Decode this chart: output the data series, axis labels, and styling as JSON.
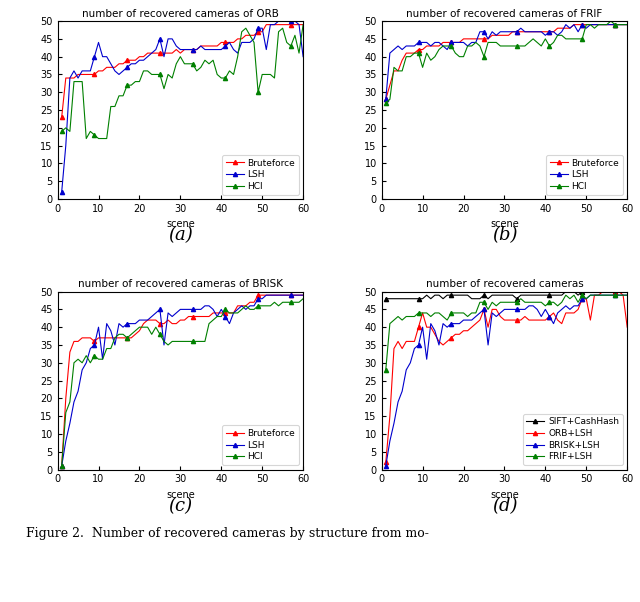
{
  "title_a": "number of recovered cameras of ORB",
  "title_b": "number of recovered cameras of FRIF",
  "title_c": "number of recovered cameras of BRISK",
  "title_d": "number of recovered cameras",
  "xlabel": "scene",
  "ylim": [
    0,
    50
  ],
  "xlim": [
    0,
    60
  ],
  "yticks": [
    0,
    5,
    10,
    15,
    20,
    25,
    30,
    35,
    40,
    45,
    50
  ],
  "xticks": [
    0,
    10,
    20,
    30,
    40,
    50,
    60
  ],
  "caption_a": "(a)",
  "caption_b": "(b)",
  "caption_c": "(c)",
  "caption_d": "(d)",
  "figure_caption": "Figure 2.  Number of recovered cameras by structure from mo-",
  "orb_bruteforce": [
    23,
    34,
    34,
    34,
    35,
    35,
    35,
    35,
    35,
    36,
    36,
    37,
    37,
    37,
    38,
    38,
    39,
    39,
    39,
    40,
    40,
    41,
    41,
    41,
    41,
    41,
    41,
    41,
    42,
    41,
    42,
    42,
    42,
    42,
    43,
    43,
    43,
    43,
    43,
    44,
    44,
    44,
    44,
    45,
    45,
    46,
    46,
    46,
    47,
    47,
    49,
    49,
    49,
    49,
    49,
    49,
    49,
    49,
    49,
    49
  ],
  "orb_lsh": [
    2,
    15,
    34,
    36,
    34,
    36,
    36,
    36,
    40,
    44,
    40,
    40,
    38,
    36,
    35,
    36,
    37,
    38,
    38,
    39,
    39,
    40,
    41,
    42,
    45,
    40,
    45,
    45,
    43,
    42,
    42,
    42,
    42,
    42,
    43,
    42,
    42,
    42,
    42,
    42,
    43,
    44,
    42,
    41,
    44,
    44,
    44,
    45,
    48,
    48,
    42,
    49,
    49,
    50,
    50,
    50,
    50,
    50,
    49,
    40
  ],
  "orb_hci": [
    19,
    20,
    19,
    33,
    33,
    33,
    17,
    19,
    18,
    17,
    17,
    17,
    26,
    26,
    29,
    29,
    32,
    32,
    33,
    33,
    36,
    36,
    35,
    35,
    35,
    31,
    35,
    34,
    38,
    40,
    38,
    38,
    38,
    36,
    37,
    39,
    38,
    39,
    35,
    34,
    34,
    36,
    35,
    40,
    47,
    48,
    46,
    44,
    30,
    35,
    35,
    35,
    34,
    47,
    48,
    44,
    43,
    46,
    41,
    49
  ],
  "frif_bruteforce": [
    28,
    32,
    36,
    36,
    39,
    41,
    41,
    41,
    42,
    42,
    43,
    43,
    43,
    43,
    44,
    44,
    44,
    44,
    44,
    45,
    45,
    45,
    45,
    45,
    45,
    45,
    46,
    46,
    46,
    46,
    46,
    47,
    47,
    47,
    47,
    47,
    47,
    47,
    47,
    47,
    47,
    47,
    48,
    48,
    48,
    48,
    49,
    49,
    49,
    49,
    49,
    49,
    49,
    49,
    49,
    49,
    49,
    49,
    49,
    49
  ],
  "frif_lsh": [
    28,
    41,
    42,
    43,
    42,
    43,
    43,
    43,
    44,
    44,
    44,
    43,
    44,
    44,
    43,
    42,
    44,
    44,
    44,
    44,
    43,
    44,
    44,
    47,
    47,
    45,
    47,
    46,
    47,
    47,
    47,
    47,
    47,
    48,
    47,
    47,
    47,
    47,
    47,
    46,
    47,
    47,
    46,
    47,
    49,
    48,
    49,
    47,
    49,
    48,
    49,
    49,
    49,
    49,
    49,
    49,
    49,
    49,
    49,
    49
  ],
  "frif_hci": [
    27,
    28,
    37,
    36,
    36,
    40,
    40,
    41,
    41,
    37,
    41,
    39,
    40,
    42,
    43,
    43,
    43,
    41,
    40,
    40,
    43,
    43,
    44,
    43,
    40,
    44,
    44,
    44,
    43,
    43,
    43,
    43,
    43,
    43,
    43,
    44,
    45,
    44,
    43,
    45,
    43,
    44,
    46,
    46,
    45,
    45,
    45,
    45,
    45,
    49,
    49,
    48,
    49,
    49,
    49,
    50,
    49,
    49,
    49,
    49
  ],
  "brisk_bruteforce": [
    1,
    20,
    33,
    36,
    36,
    37,
    37,
    37,
    36,
    37,
    37,
    37,
    37,
    37,
    37,
    37,
    37,
    37,
    38,
    39,
    41,
    42,
    42,
    42,
    41,
    41,
    42,
    41,
    41,
    42,
    42,
    43,
    43,
    43,
    43,
    43,
    43,
    44,
    44,
    44,
    44,
    44,
    44,
    46,
    46,
    46,
    47,
    47,
    49,
    49,
    49,
    49,
    49,
    49,
    49,
    49,
    49,
    49,
    49,
    49
  ],
  "brisk_lsh": [
    1,
    8,
    13,
    19,
    22,
    28,
    30,
    34,
    35,
    40,
    31,
    41,
    39,
    35,
    41,
    40,
    41,
    41,
    41,
    42,
    42,
    42,
    43,
    44,
    45,
    35,
    44,
    43,
    44,
    45,
    45,
    45,
    45,
    45,
    45,
    46,
    46,
    45,
    43,
    45,
    43,
    41,
    44,
    45,
    46,
    45,
    46,
    46,
    48,
    48,
    49,
    49,
    49,
    49,
    49,
    49,
    49,
    49,
    49,
    49
  ],
  "brisk_hci": [
    1,
    16,
    19,
    30,
    31,
    30,
    32,
    30,
    32,
    31,
    31,
    34,
    34,
    37,
    38,
    38,
    37,
    38,
    39,
    40,
    40,
    40,
    38,
    40,
    38,
    36,
    35,
    36,
    36,
    36,
    36,
    36,
    36,
    36,
    36,
    36,
    41,
    42,
    43,
    43,
    45,
    44,
    44,
    44,
    45,
    46,
    45,
    45,
    46,
    46,
    46,
    46,
    47,
    46,
    47,
    47,
    47,
    47,
    47,
    48
  ],
  "d_sift_cashhash": [
    48,
    48,
    48,
    48,
    48,
    48,
    48,
    48,
    48,
    48,
    49,
    48,
    49,
    49,
    48,
    49,
    49,
    49,
    49,
    49,
    49,
    48,
    48,
    48,
    49,
    48,
    49,
    49,
    49,
    49,
    49,
    49,
    48,
    49,
    49,
    49,
    49,
    49,
    49,
    49,
    49,
    49,
    49,
    49,
    50,
    50,
    50,
    49,
    50,
    50,
    50,
    50,
    50,
    50,
    50,
    50,
    50,
    50,
    50,
    50
  ],
  "d_orb_lsh": [
    2,
    15,
    34,
    36,
    34,
    36,
    36,
    36,
    40,
    44,
    40,
    40,
    38,
    36,
    35,
    36,
    37,
    38,
    38,
    39,
    39,
    40,
    41,
    42,
    45,
    40,
    45,
    45,
    43,
    42,
    42,
    42,
    42,
    42,
    43,
    42,
    42,
    42,
    42,
    42,
    43,
    44,
    42,
    41,
    44,
    44,
    44,
    45,
    48,
    48,
    42,
    49,
    49,
    50,
    50,
    50,
    50,
    50,
    49,
    40
  ],
  "d_brisk_lsh": [
    1,
    8,
    13,
    19,
    22,
    28,
    30,
    34,
    35,
    40,
    31,
    41,
    39,
    35,
    41,
    40,
    41,
    41,
    41,
    42,
    42,
    42,
    43,
    44,
    45,
    35,
    44,
    43,
    44,
    45,
    45,
    45,
    45,
    45,
    45,
    46,
    46,
    45,
    43,
    45,
    43,
    41,
    44,
    45,
    46,
    45,
    46,
    46,
    48,
    48,
    49,
    49,
    49,
    49,
    49,
    49,
    49,
    49,
    49,
    49
  ],
  "d_frif_lsh": [
    28,
    41,
    42,
    43,
    42,
    43,
    43,
    43,
    44,
    44,
    44,
    43,
    44,
    44,
    43,
    42,
    44,
    44,
    44,
    44,
    43,
    44,
    44,
    47,
    47,
    45,
    47,
    46,
    47,
    47,
    47,
    47,
    47,
    48,
    47,
    47,
    47,
    47,
    47,
    46,
    47,
    47,
    46,
    47,
    49,
    48,
    49,
    47,
    49,
    48,
    49,
    49,
    49,
    49,
    49,
    49,
    49,
    49,
    49,
    49
  ],
  "color_red": "#ff0000",
  "color_blue": "#0000cd",
  "color_green": "#008000",
  "color_black": "#000000",
  "bg_color": "#ffffff",
  "font_size": 7,
  "title_font_size": 7.5,
  "legend_font_size": 6.5,
  "caption_font_size": 13,
  "fig_caption_font_size": 9
}
